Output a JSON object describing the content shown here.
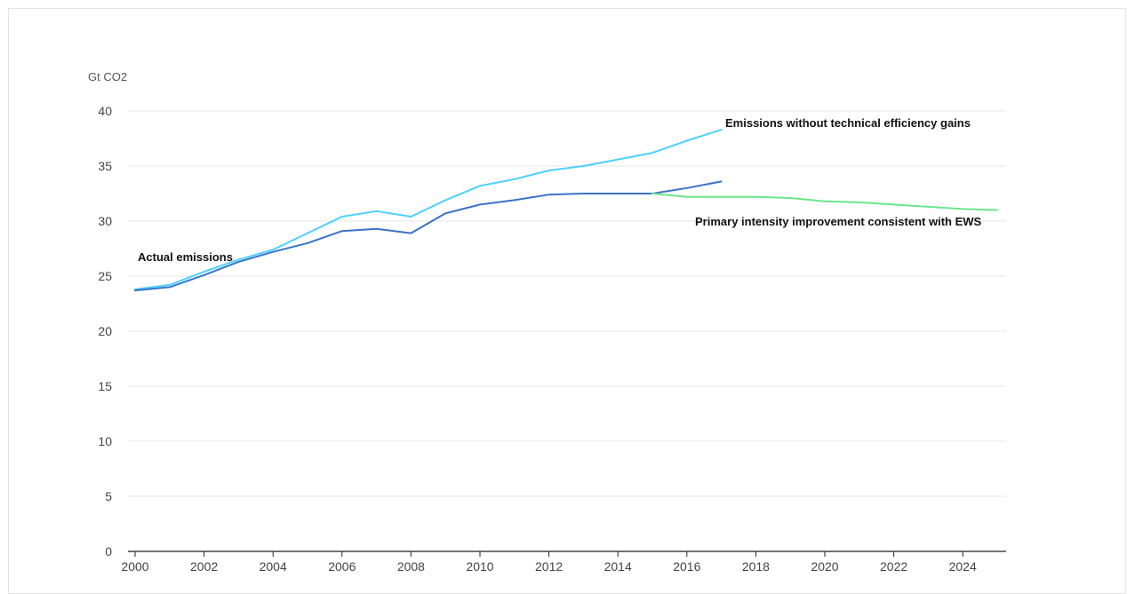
{
  "chart_data": {
    "type": "line",
    "ylabel": "Gt CO2",
    "ylim": [
      0,
      40
    ],
    "xlim": [
      2000,
      2025
    ],
    "yticks": [
      0,
      5,
      10,
      15,
      20,
      25,
      30,
      35,
      40
    ],
    "xticks": [
      2000,
      2002,
      2004,
      2006,
      2008,
      2010,
      2012,
      2014,
      2016,
      2018,
      2020,
      2022,
      2024
    ],
    "grid": true,
    "series": [
      {
        "name": "Emissions without technical efficiency gains",
        "color": "#4dcfff",
        "x": [
          2000,
          2001,
          2002,
          2003,
          2004,
          2005,
          2006,
          2007,
          2008,
          2009,
          2010,
          2011,
          2012,
          2013,
          2014,
          2015,
          2016,
          2017
        ],
        "values": [
          23.8,
          24.2,
          25.4,
          26.5,
          27.4,
          28.9,
          30.4,
          30.9,
          30.4,
          31.9,
          33.2,
          33.8,
          34.6,
          35.0,
          35.6,
          36.2,
          37.3,
          38.3
        ]
      },
      {
        "name": "Actual emissions",
        "color": "#3a72c8",
        "x": [
          2000,
          2001,
          2002,
          2003,
          2004,
          2005,
          2006,
          2007,
          2008,
          2009,
          2010,
          2011,
          2012,
          2013,
          2014,
          2015,
          2016,
          2017
        ],
        "values": [
          23.7,
          24.0,
          25.1,
          26.3,
          27.2,
          28.0,
          29.1,
          29.3,
          28.9,
          30.7,
          31.5,
          31.9,
          32.4,
          32.5,
          32.5,
          32.5,
          33.0,
          33.6
        ]
      },
      {
        "name": "Primary intensity improvement consistent with EWS",
        "color": "#6be58c",
        "x": [
          2015,
          2016,
          2017,
          2018,
          2019,
          2020,
          2021,
          2022,
          2023,
          2024,
          2025
        ],
        "values": [
          32.5,
          32.2,
          32.2,
          32.2,
          32.1,
          31.8,
          31.7,
          31.5,
          31.3,
          31.1,
          31.0
        ]
      }
    ],
    "annotations": [
      {
        "text": "Emissions without technical efficiency gains"
      },
      {
        "text": "Actual emissions"
      },
      {
        "text": "Primary intensity improvement consistent with EWS"
      }
    ]
  }
}
